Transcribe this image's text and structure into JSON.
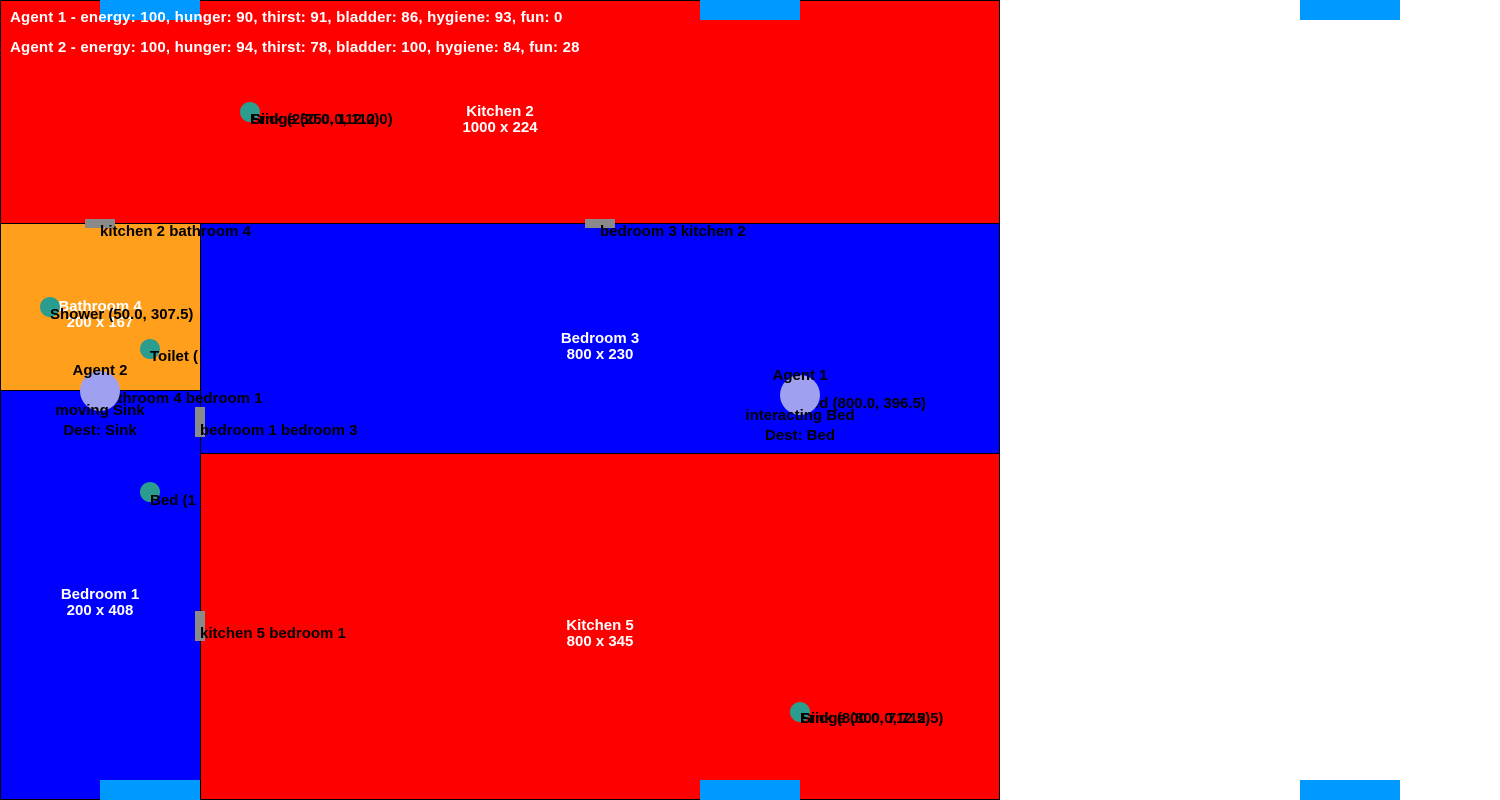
{
  "status": {
    "agent1": "Agent 1 - energy: 100, hunger: 90, thirst: 91, bladder: 86, hygiene: 93, fun: 0",
    "agent2": "Agent 2 - energy: 100, hunger: 94, thirst: 78, bladder: 100, hygiene: 84, fun: 28"
  },
  "rooms": {
    "kitchen2": {
      "name": "Kitchen 2",
      "size": "1000 x 224",
      "color": "#ff0000"
    },
    "bathroom4": {
      "name": "Bathroom 4",
      "size": "200 x 167",
      "color": "#ff9f1c"
    },
    "bedroom3": {
      "name": "Bedroom 3",
      "size": "800 x 230",
      "color": "#0000ff"
    },
    "bedroom1": {
      "name": "Bedroom 1",
      "size": "200 x 408",
      "color": "#0000ff"
    },
    "kitchen5": {
      "name": "Kitchen 5",
      "size": "800 x 345",
      "color": "#ff0000"
    }
  },
  "doors": {
    "kitchen2_bathroom4": "kitchen 2 bathroom 4",
    "bedroom3_kitchen2": "bedroom 3 kitchen 2",
    "bathroom4_bedroom1": "bathroom 4 bedroom 1",
    "bedroom1_bedroom3": "bedroom 1 bedroom 3",
    "kitchen5_bedroom1": "kitchen 5 bedroom 1"
  },
  "objects": {
    "kitchen2_sink_fridge": "Sink (250.0, 112.0)",
    "kitchen2_overlap": "Fridge (250.0, 112.0)",
    "shower": "Shower (50.0, 307.5)",
    "toilet": "Toilet (",
    "bed1": "Bed (1",
    "bed3": "Bed (800.0, 396.5)",
    "kitchen5_sink": "Sink (800.0, 712.5)",
    "kitchen5_overlap": "Fridge (800.0, 712.5)"
  },
  "agents": {
    "agent1": {
      "name": "Agent 1",
      "state": "interacting Bed",
      "dest": "Dest: Bed"
    },
    "agent2": {
      "name": "Agent 2",
      "state": "moving Sink",
      "dest": "Dest: Sink"
    }
  },
  "colors": {
    "window": "#0099ff",
    "door": "#8a8a8a",
    "object": "#2a9d8f",
    "agent": "#a0a0f0"
  }
}
